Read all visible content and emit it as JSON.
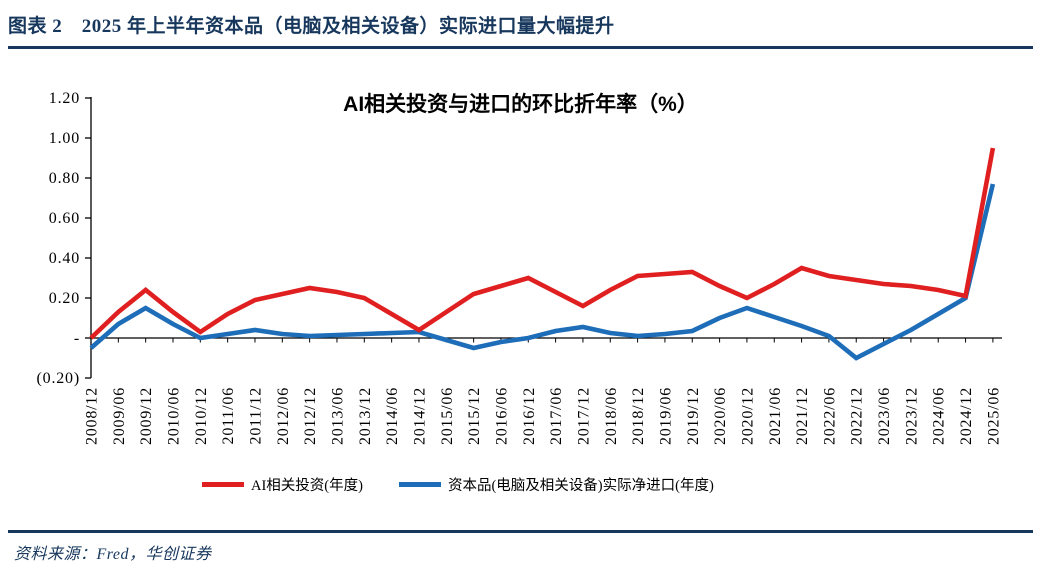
{
  "header": {
    "title": "图表 2　2025 年上半年资本品（电脑及相关设备）实际进口量大幅提升"
  },
  "source": {
    "text": "资料来源：Fred，华创证券"
  },
  "chart_data": {
    "type": "line",
    "title": "AI相关投资与进口的环比折年率（%）",
    "grid": false,
    "legend_position": "bottom",
    "categories": [
      "2008/12",
      "2009/06",
      "2009/12",
      "2010/06",
      "2010/12",
      "2011/06",
      "2011/12",
      "2012/06",
      "2012/12",
      "2013/06",
      "2013/12",
      "2014/06",
      "2014/12",
      "2015/06",
      "2015/12",
      "2016/06",
      "2016/12",
      "2017/06",
      "2017/12",
      "2018/06",
      "2018/12",
      "2019/06",
      "2019/12",
      "2020/06",
      "2020/12",
      "2021/06",
      "2021/12",
      "2022/06",
      "2022/12",
      "2023/06",
      "2023/12",
      "2024/06",
      "2024/12",
      "2025/06"
    ],
    "series": [
      {
        "name": "AI相关投资(年度)",
        "color": "#E02020",
        "values": [
          0,
          0.13,
          0.24,
          0.13,
          0.03,
          0.12,
          0.19,
          0.22,
          0.25,
          0.23,
          0.2,
          0.12,
          0.04,
          0.13,
          0.22,
          0.26,
          0.3,
          0.23,
          0.16,
          0.24,
          0.31,
          0.32,
          0.33,
          0.26,
          0.2,
          0.27,
          0.35,
          0.31,
          0.29,
          0.27,
          0.26,
          0.24,
          0.21,
          0.95
        ]
      },
      {
        "name": "资本品(电脑及相关设备)实际净进口(年度)",
        "color": "#1E6DB8",
        "values": [
          -0.05,
          0.07,
          0.15,
          0.07,
          0,
          0.02,
          0.04,
          0.02,
          0.01,
          0.015,
          0.02,
          0.025,
          0.03,
          -0.01,
          -0.05,
          -0.02,
          0,
          0.035,
          0.055,
          0.025,
          0.01,
          0.02,
          0.035,
          0.1,
          0.15,
          0.105,
          0.06,
          0.01,
          -0.1,
          -0.03,
          0.04,
          0.12,
          0.2,
          0.77
        ]
      }
    ],
    "y_axis": {
      "min": -0.2,
      "max": 1.2,
      "tick_interval": 0.2,
      "tick_labels": [
        "(0.20)",
        "-",
        "0.20",
        "0.40",
        "0.60",
        "0.80",
        "1.00",
        "1.20"
      ]
    }
  }
}
